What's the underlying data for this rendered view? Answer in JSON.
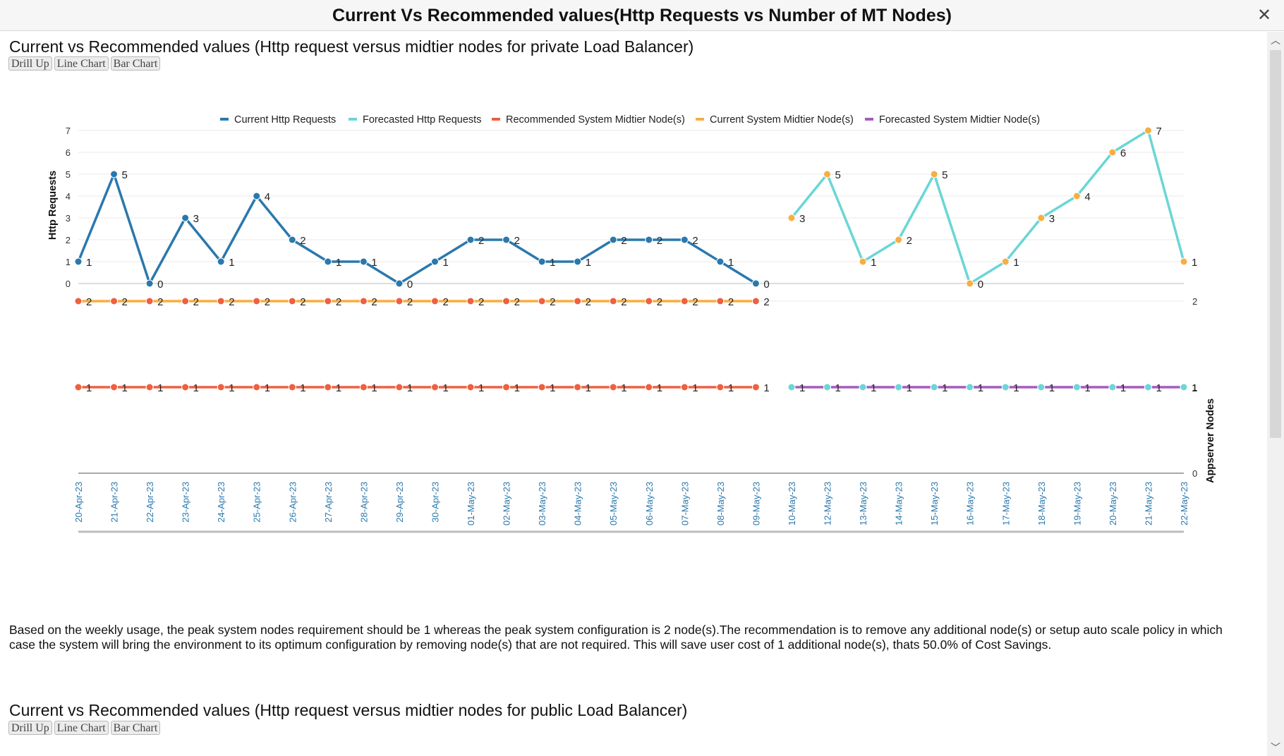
{
  "dialog": {
    "title": "Current Vs Recommended values(Http Requests vs Number of MT Nodes)",
    "close_icon": "close-icon"
  },
  "sections": [
    {
      "title": "Current vs Recommended values (Http request versus midtier nodes for private Load Balancer)",
      "buttons": [
        "Drill Up",
        "Line Chart",
        "Bar Chart"
      ]
    },
    {
      "title": "Current vs Recommended values (Http request versus midtier nodes for public Load Balancer)",
      "buttons": [
        "Drill Up",
        "Line Chart",
        "Bar Chart"
      ]
    }
  ],
  "description": "Based on the weekly usage, the peak system nodes requirement should be 1 whereas the peak system configuration is 2 node(s).The recommendation is to remove any additional node(s) or setup auto scale policy in which case the system will bring the environment to its optimum configuration by removing node(s) that are not required. This will save user cost of 1 additional node(s), thats 50.0% of Cost Savings.",
  "chart_data": {
    "type": "line",
    "categories": [
      "20-Apr-23",
      "21-Apr-23",
      "22-Apr-23",
      "23-Apr-23",
      "24-Apr-23",
      "25-Apr-23",
      "26-Apr-23",
      "27-Apr-23",
      "28-Apr-23",
      "29-Apr-23",
      "30-Apr-23",
      "01-May-23",
      "02-May-23",
      "03-May-23",
      "04-May-23",
      "05-May-23",
      "06-May-23",
      "07-May-23",
      "08-May-23",
      "09-May-23",
      "10-May-23",
      "12-May-23",
      "13-May-23",
      "14-May-23",
      "15-May-23",
      "16-May-23",
      "17-May-23",
      "18-May-23",
      "19-May-23",
      "20-May-23",
      "21-May-23",
      "22-May-23"
    ],
    "upper_axis": {
      "label": "Http Requests",
      "ticks": [
        0,
        1,
        2,
        3,
        4,
        5,
        6,
        7
      ],
      "range": [
        0,
        7
      ]
    },
    "lower_axis": {
      "label": "Appserver Nodes",
      "ticks": [
        0,
        1,
        2
      ],
      "range": [
        0,
        2
      ]
    },
    "legend_position": "top",
    "grid": true,
    "series": [
      {
        "name": "Current Http Requests",
        "axis": "upper",
        "color": "#2a78ad",
        "marker_color": "#2a78ad",
        "values": [
          1,
          5,
          0,
          3,
          1,
          4,
          2,
          1,
          1,
          0,
          1,
          2,
          2,
          1,
          1,
          2,
          2,
          2,
          1,
          0,
          null,
          null,
          null,
          null,
          null,
          null,
          null,
          null,
          null,
          null,
          null,
          null
        ]
      },
      {
        "name": "Forecasted Http Requests",
        "axis": "upper",
        "color": "#6ad6d6",
        "marker_color": "#f7ae42",
        "values": [
          null,
          null,
          null,
          null,
          null,
          null,
          null,
          null,
          null,
          null,
          null,
          null,
          null,
          null,
          null,
          null,
          null,
          null,
          null,
          null,
          3,
          5,
          1,
          2,
          5,
          0,
          1,
          3,
          4,
          6,
          7,
          1
        ]
      },
      {
        "name": "Recommended System Midtier Node(s)",
        "axis": "lower",
        "color": "#ee6040",
        "marker_color": "#ee6040",
        "values": [
          1,
          1,
          1,
          1,
          1,
          1,
          1,
          1,
          1,
          1,
          1,
          1,
          1,
          1,
          1,
          1,
          1,
          1,
          1,
          1,
          null,
          null,
          null,
          null,
          null,
          null,
          null,
          null,
          null,
          null,
          null,
          null
        ]
      },
      {
        "name": "Current System Midtier Node(s)",
        "axis": "lower",
        "color": "#f7ae42",
        "marker_color": "#ee6040",
        "values": [
          2,
          2,
          2,
          2,
          2,
          2,
          2,
          2,
          2,
          2,
          2,
          2,
          2,
          2,
          2,
          2,
          2,
          2,
          2,
          2,
          null,
          null,
          null,
          null,
          null,
          null,
          null,
          null,
          null,
          null,
          null,
          null
        ]
      },
      {
        "name": "Forecasted System Midtier Node(s)",
        "axis": "lower",
        "color": "#a55bbe",
        "marker_color": "#6ad6d6",
        "values": [
          null,
          null,
          null,
          null,
          null,
          null,
          null,
          null,
          null,
          null,
          null,
          null,
          null,
          null,
          null,
          null,
          null,
          null,
          null,
          null,
          1,
          1,
          1,
          1,
          1,
          1,
          1,
          1,
          1,
          1,
          1,
          1
        ]
      }
    ]
  }
}
